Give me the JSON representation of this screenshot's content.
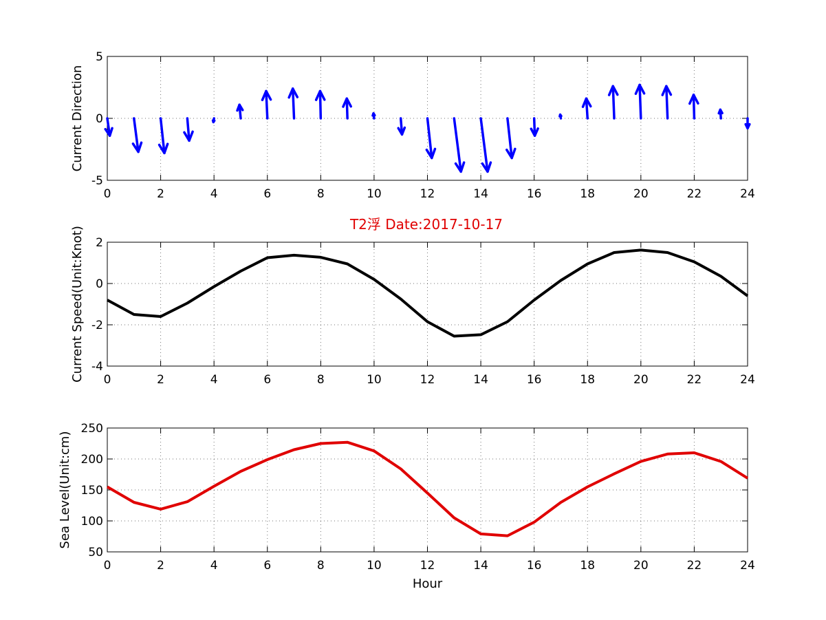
{
  "title": "T2浮    Date:2017-10-17",
  "chart_data": [
    {
      "type": "quiver",
      "ylabel": "Current Direction",
      "xlabel": "",
      "xlim": [
        0,
        24
      ],
      "ylim": [
        -5,
        5
      ],
      "xticks": [
        0,
        2,
        4,
        6,
        8,
        10,
        12,
        14,
        16,
        18,
        20,
        22,
        24
      ],
      "yticks": [
        -5,
        0,
        5
      ],
      "grid": true,
      "color": "#0000ff",
      "arrows": [
        {
          "x": 0,
          "u": 0.2,
          "v": -1.4
        },
        {
          "x": 1,
          "u": 0.35,
          "v": -2.7
        },
        {
          "x": 2,
          "u": 0.3,
          "v": -2.8
        },
        {
          "x": 3,
          "u": 0.15,
          "v": -1.8
        },
        {
          "x": 4,
          "u": -0.05,
          "v": -0.3
        },
        {
          "x": 5,
          "u": -0.1,
          "v": 1.1
        },
        {
          "x": 6,
          "u": -0.1,
          "v": 2.2
        },
        {
          "x": 7,
          "u": -0.1,
          "v": 2.4
        },
        {
          "x": 8,
          "u": -0.05,
          "v": 2.2
        },
        {
          "x": 9,
          "u": -0.05,
          "v": 1.6
        },
        {
          "x": 10,
          "u": -0.05,
          "v": 0.4
        },
        {
          "x": 11,
          "u": 0.1,
          "v": -1.3
        },
        {
          "x": 12,
          "u": 0.35,
          "v": -3.2
        },
        {
          "x": 13,
          "u": 0.55,
          "v": -4.3
        },
        {
          "x": 14,
          "u": 0.55,
          "v": -4.3
        },
        {
          "x": 15,
          "u": 0.35,
          "v": -3.2
        },
        {
          "x": 16,
          "u": 0.05,
          "v": -1.4
        },
        {
          "x": 17,
          "u": -0.05,
          "v": 0.3
        },
        {
          "x": 18,
          "u": -0.1,
          "v": 1.6
        },
        {
          "x": 19,
          "u": -0.1,
          "v": 2.6
        },
        {
          "x": 20,
          "u": -0.1,
          "v": 2.7
        },
        {
          "x": 21,
          "u": -0.1,
          "v": 2.6
        },
        {
          "x": 22,
          "u": -0.05,
          "v": 1.9
        },
        {
          "x": 23,
          "u": -0.05,
          "v": 0.7
        },
        {
          "x": 24,
          "u": 0.0,
          "v": -0.8
        }
      ]
    },
    {
      "type": "line",
      "ylabel": "Current Speed(Unit:Knot)",
      "xlabel": "",
      "xlim": [
        0,
        24
      ],
      "ylim": [
        -4,
        2
      ],
      "xticks": [
        0,
        2,
        4,
        6,
        8,
        10,
        12,
        14,
        16,
        18,
        20,
        22,
        24
      ],
      "yticks": [
        -4,
        -2,
        0,
        2
      ],
      "grid": true,
      "color": "#000000",
      "x": [
        0,
        1,
        2,
        3,
        4,
        5,
        6,
        7,
        8,
        9,
        10,
        11,
        12,
        13,
        14,
        15,
        16,
        17,
        18,
        19,
        20,
        21,
        22,
        23,
        24
      ],
      "y": [
        -0.8,
        -1.5,
        -1.6,
        -0.95,
        -0.15,
        0.6,
        1.25,
        1.37,
        1.27,
        0.95,
        0.2,
        -0.75,
        -1.85,
        -2.55,
        -2.48,
        -1.85,
        -0.8,
        0.15,
        0.95,
        1.5,
        1.62,
        1.5,
        1.05,
        0.35,
        -0.6
      ]
    },
    {
      "type": "line",
      "ylabel": "Sea Level(Unit:cm)",
      "xlabel": "Hour",
      "xlim": [
        0,
        24
      ],
      "ylim": [
        50,
        250
      ],
      "xticks": [
        0,
        2,
        4,
        6,
        8,
        10,
        12,
        14,
        16,
        18,
        20,
        22,
        24
      ],
      "yticks": [
        50,
        100,
        150,
        200,
        250
      ],
      "grid": true,
      "color": "#e00000",
      "x": [
        0,
        1,
        2,
        3,
        4,
        5,
        6,
        7,
        8,
        9,
        10,
        11,
        12,
        13,
        14,
        15,
        16,
        17,
        18,
        19,
        20,
        21,
        22,
        23,
        24
      ],
      "y": [
        155,
        130,
        119,
        131,
        156,
        180,
        199,
        215,
        225,
        227,
        213,
        184,
        145,
        105,
        79,
        76,
        98,
        130,
        155,
        176,
        196,
        208,
        210,
        196,
        169
      ]
    }
  ]
}
